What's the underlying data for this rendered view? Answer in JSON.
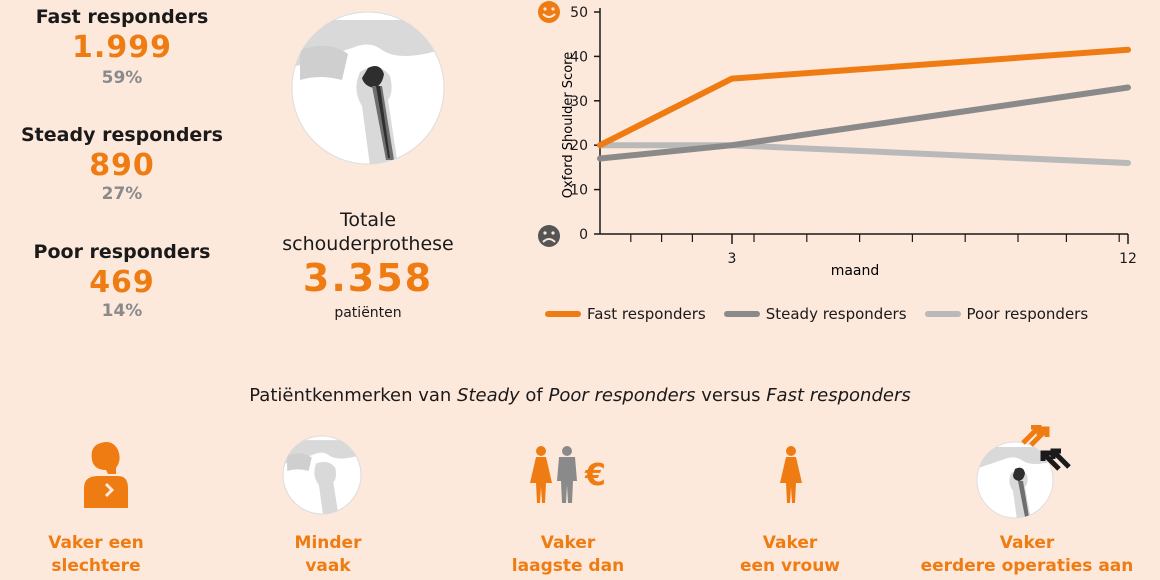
{
  "groups": [
    {
      "name": "Fast responders",
      "count": "1.999",
      "percent": "59%"
    },
    {
      "name": "Steady responders",
      "count": "890",
      "percent": "27%"
    },
    {
      "name": "Poor responders",
      "count": "469",
      "percent": "14%"
    }
  ],
  "total": {
    "title_line1": "Totale",
    "title_line2": "schouderprothese",
    "count": "3.358",
    "unit": "patiënten"
  },
  "colors": {
    "accent": "#ef7c12",
    "fast": "#ef7c12",
    "steady": "#8a8a8a",
    "poor": "#b9b9b9",
    "background": "#fde8dc"
  },
  "chart_data": {
    "type": "line",
    "ylabel": "Oxford Shoulder Score",
    "xlabel": "maand",
    "ylim": [
      0,
      50
    ],
    "yticks": [
      0,
      10,
      20,
      30,
      40,
      50
    ],
    "xlim": [
      0,
      12
    ],
    "xtick_labels": [
      {
        "x": 3,
        "label": "3"
      },
      {
        "x": 12,
        "label": "12"
      }
    ],
    "x_minor_ticks": [
      0.7,
      1.4,
      2.1,
      3.5,
      4.7,
      5.9,
      7.1,
      8.3,
      9.5,
      10.6,
      11.8
    ],
    "series": [
      {
        "name": "Fast responders",
        "color": "#ef7c12",
        "x": [
          0,
          3,
          12
        ],
        "y": [
          20,
          35,
          41.5
        ]
      },
      {
        "name": "Steady responders",
        "color": "#8a8a8a",
        "x": [
          0,
          3,
          12
        ],
        "y": [
          17,
          20,
          33
        ]
      },
      {
        "name": "Poor responders",
        "color": "#b9b9b9",
        "x": [
          0,
          3,
          12
        ],
        "y": [
          20,
          20,
          16
        ]
      }
    ],
    "y_top_icon": "smiley-happy-icon",
    "y_bottom_icon": "smiley-sad-icon"
  },
  "legend": [
    {
      "label": "Fast responders",
      "color": "#ef7c12"
    },
    {
      "label": "Steady responders",
      "color": "#8a8a8a"
    },
    {
      "label": "Poor responders",
      "color": "#b9b9b9"
    }
  ],
  "characteristics": {
    "parts": [
      "Patiëntkenmerken van ",
      "Steady",
      " of ",
      "Poor responders",
      " versus ",
      "Fast responders"
    ],
    "items": [
      {
        "line1": "Vaker een",
        "line2": "slechtere",
        "icon": "person-pain-icon"
      },
      {
        "line1": "Minder",
        "line2": "vaak",
        "icon": "shoulder-icon"
      },
      {
        "line1": "Vaker",
        "line2": "laagste dan",
        "icon": "couple-euro-icon"
      },
      {
        "line1": "Vaker",
        "line2": "een vrouw",
        "icon": "woman-icon"
      },
      {
        "line1": "Vaker",
        "line2": "eerdere operaties aan",
        "icon": "shoulder-surgery-icon"
      }
    ]
  }
}
